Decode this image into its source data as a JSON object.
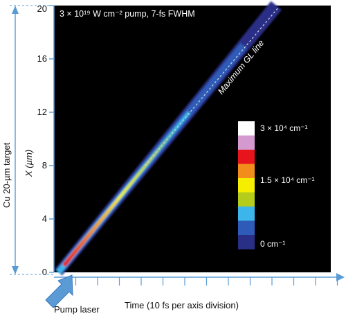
{
  "chart_data": {
    "type": "heatmap",
    "title": "3 × 10¹⁹ W cm⁻² pump, 7-fs FWHM",
    "xlabel": "Time (10 fs per axis division)",
    "ylabel_line1": "Cu 20-µm target",
    "ylabel_line2": "X (µm)",
    "ylim": [
      0,
      20
    ],
    "yticks": [
      "0",
      "4",
      "8",
      "12",
      "16",
      "20"
    ],
    "x_divisions": 13,
    "pump_label": "Pump laser",
    "annotation": "Maximum GL line",
    "colorbar": {
      "labels": [
        "3 × 10⁴ cm⁻¹",
        "1.5 × 10⁴ cm⁻¹",
        "0 cm⁻¹"
      ],
      "colors": [
        "#ffffff",
        "#d49ad0",
        "#e8141c",
        "#f28c1a",
        "#f5ee00",
        "#b5cc1a",
        "#3bb5ea",
        "#2f5bb8",
        "#2a2f86"
      ]
    },
    "gain_band": {
      "start": {
        "time_div": 0.2,
        "x_um": 0
      },
      "end": {
        "time_div": 10.2,
        "x_um": 20
      },
      "peak_x_um_range": [
        1,
        11
      ]
    },
    "colors": {
      "background": "#000000",
      "axis": "#5b9bd5",
      "max_gl_line": "#d9d9d9"
    }
  }
}
